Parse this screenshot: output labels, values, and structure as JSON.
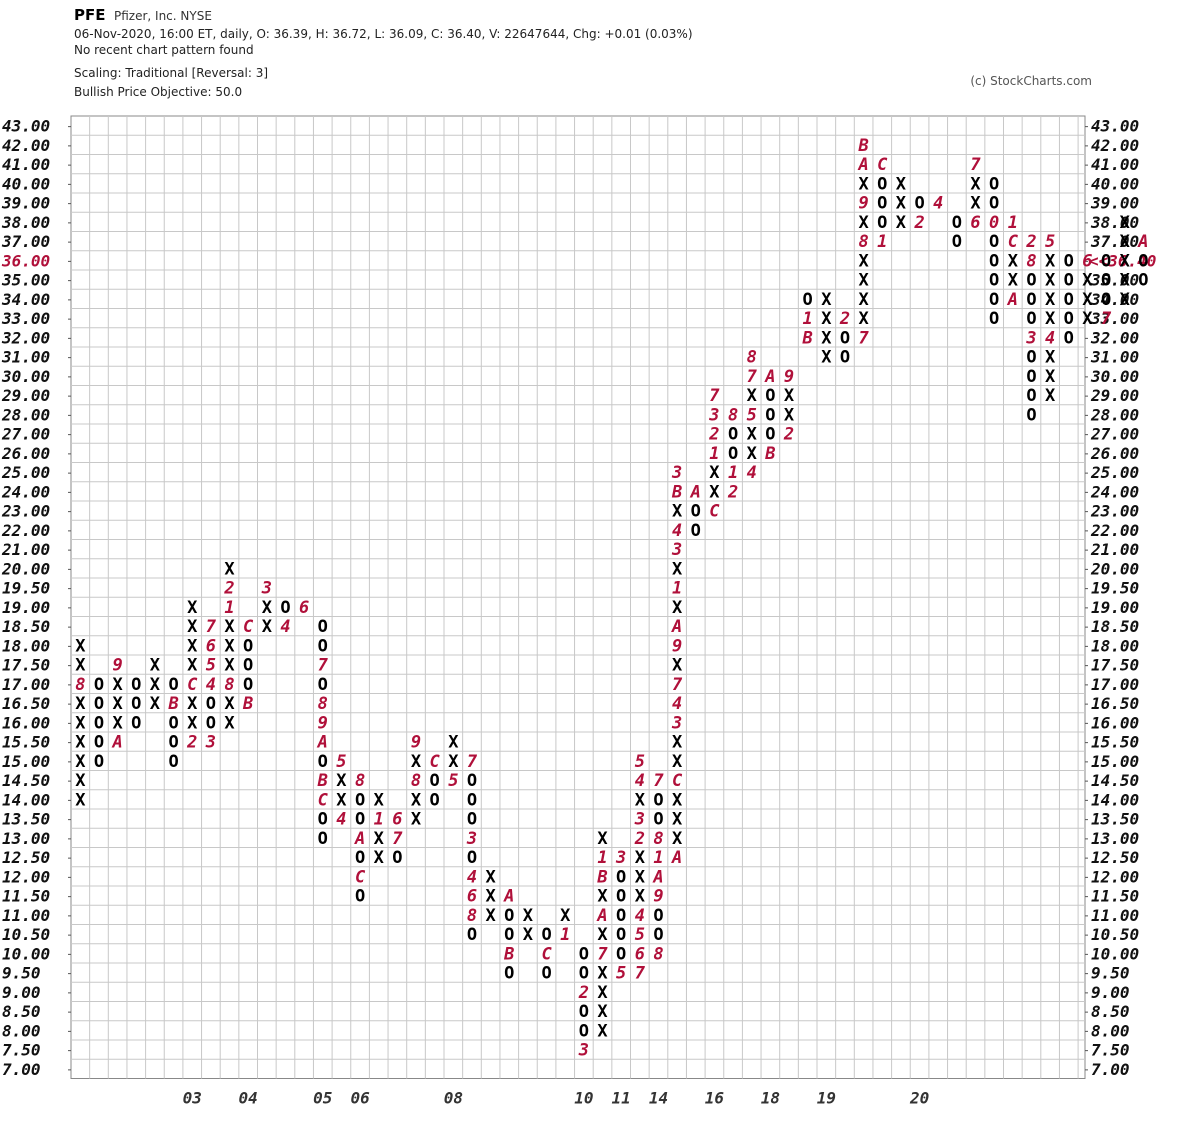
{
  "header": {
    "symbol": "PFE",
    "company": "Pfizer, Inc.  NYSE",
    "quote": "06-Nov-2020, 16:00 ET, daily, O: 36.39, H: 36.72, L: 36.09, C: 36.40, V: 22647644, Chg: +0.01 (0.03%)",
    "pattern": "No recent chart pattern found",
    "scaling": "Scaling: Traditional [Reversal: 3]",
    "objective": "Bullish Price Objective: 50.0",
    "credit": "(c) StockCharts.com"
  },
  "chart_data": {
    "type": "point-and-figure",
    "boxes": [
      "43.00",
      "42.00",
      "41.00",
      "40.00",
      "39.00",
      "38.00",
      "37.00",
      "36.00",
      "35.00",
      "34.00",
      "33.00",
      "32.00",
      "31.00",
      "30.00",
      "29.00",
      "28.00",
      "27.00",
      "26.00",
      "25.00",
      "24.00",
      "23.00",
      "22.00",
      "21.00",
      "20.00",
      "19.50",
      "19.00",
      "18.50",
      "18.00",
      "17.50",
      "17.00",
      "16.50",
      "16.00",
      "15.50",
      "15.00",
      "14.50",
      "14.00",
      "13.50",
      "13.00",
      "12.50",
      "12.00",
      "11.50",
      "11.00",
      "10.50",
      "10.00",
      "9.50",
      "9.00",
      "8.50",
      "8.00",
      "7.50",
      "7.00"
    ],
    "last_price_label": "<<36.40",
    "last_price_box": "36.00",
    "x_labels": [
      {
        "text": "03",
        "col": 6
      },
      {
        "text": "04",
        "col": 9
      },
      {
        "text": "05",
        "col": 13
      },
      {
        "text": "06",
        "col": 15
      },
      {
        "text": "08",
        "col": 20
      },
      {
        "text": "10",
        "col": 27
      },
      {
        "text": "11",
        "col": 29
      },
      {
        "text": "14",
        "col": 31
      },
      {
        "text": "16",
        "col": 34
      },
      {
        "text": "18",
        "col": 37
      },
      {
        "text": "19",
        "col": 40
      },
      {
        "text": "20",
        "col": 45
      }
    ],
    "columns": [
      {
        "t": "X",
        "low": "14.00",
        "high": "18.00",
        "marks": [
          [
            "16.00",
            "X"
          ],
          [
            "17.00",
            "8"
          ]
        ]
      },
      {
        "t": "O",
        "low": "15.00",
        "high": "17.00",
        "marks": [
          [
            "17.00",
            "O"
          ]
        ]
      },
      {
        "t": "X",
        "low": "15.50",
        "high": "17.50",
        "marks": [
          [
            "15.50",
            "A"
          ],
          [
            "17.50",
            "9"
          ]
        ]
      },
      {
        "t": "O",
        "low": "16.00",
        "high": "17.00"
      },
      {
        "t": "X",
        "low": "16.50",
        "high": "17.50"
      },
      {
        "t": "O",
        "low": "15.00",
        "high": "17.00",
        "marks": [
          [
            "16.50",
            "B"
          ]
        ]
      },
      {
        "t": "X",
        "low": "15.50",
        "high": "19.00",
        "marks": [
          [
            "15.50",
            "2"
          ],
          [
            "17.00",
            "C"
          ]
        ]
      },
      {
        "t": "O",
        "low": "15.50",
        "high": "18.50",
        "marks": [
          [
            "15.50",
            "3"
          ],
          [
            "17.00",
            "4"
          ],
          [
            "17.50",
            "5"
          ],
          [
            "18.00",
            "6"
          ],
          [
            "18.50",
            "7"
          ]
        ]
      },
      {
        "t": "X",
        "low": "16.00",
        "high": "20.00",
        "marks": [
          [
            "17.00",
            "8"
          ],
          [
            "19.00",
            "1"
          ],
          [
            "19.50",
            "2"
          ]
        ]
      },
      {
        "t": "O",
        "low": "16.50",
        "high": "18.50",
        "marks": [
          [
            "18.50",
            "C"
          ],
          [
            "16.50",
            "B"
          ]
        ]
      },
      {
        "t": "X",
        "low": "18.50",
        "high": "19.50",
        "marks": [
          [
            "19.50",
            "3"
          ]
        ]
      },
      {
        "t": "O",
        "low": "18.50",
        "high": "19.00",
        "marks": [
          [
            "18.50",
            "4"
          ]
        ]
      },
      {
        "t": "X",
        "low": "19.00",
        "high": "19.00",
        "marks": [
          [
            "19.00",
            "6"
          ]
        ]
      },
      {
        "t": "O",
        "low": "13.00",
        "high": "18.50",
        "marks": [
          [
            "17.50",
            "7"
          ],
          [
            "16.50",
            "8"
          ],
          [
            "16.00",
            "9"
          ],
          [
            "15.50",
            "A"
          ],
          [
            "14.50",
            "B"
          ],
          [
            "14.00",
            "C"
          ]
        ]
      },
      {
        "t": "X",
        "low": "13.50",
        "high": "15.00",
        "marks": [
          [
            "15.00",
            "5"
          ],
          [
            "13.50",
            "4"
          ]
        ]
      },
      {
        "t": "O",
        "low": "11.50",
        "high": "14.50",
        "marks": [
          [
            "14.50",
            "8"
          ],
          [
            "13.00",
            "A"
          ],
          [
            "12.00",
            "C"
          ]
        ]
      },
      {
        "t": "X",
        "low": "12.50",
        "high": "14.00",
        "marks": [
          [
            "13.50",
            "1"
          ]
        ]
      },
      {
        "t": "O",
        "low": "12.50",
        "high": "13.50",
        "marks": [
          [
            "13.50",
            "6"
          ],
          [
            "13.00",
            "7"
          ]
        ]
      },
      {
        "t": "X",
        "low": "13.50",
        "high": "15.50",
        "marks": [
          [
            "15.50",
            "9"
          ],
          [
            "14.50",
            "8"
          ]
        ]
      },
      {
        "t": "O",
        "low": "14.00",
        "high": "15.00",
        "marks": [
          [
            "15.00",
            "C"
          ]
        ]
      },
      {
        "t": "X",
        "low": "14.50",
        "high": "15.50",
        "marks": [
          [
            "14.50",
            "5"
          ]
        ]
      },
      {
        "t": "O",
        "low": "10.50",
        "high": "15.00",
        "marks": [
          [
            "15.00",
            "7"
          ],
          [
            "13.00",
            "3"
          ],
          [
            "12.00",
            "4"
          ],
          [
            "11.50",
            "6"
          ],
          [
            "11.00",
            "8"
          ]
        ]
      },
      {
        "t": "X",
        "low": "11.00",
        "high": "12.00"
      },
      {
        "t": "O",
        "low": "9.50",
        "high": "11.50",
        "marks": [
          [
            "11.50",
            "A"
          ],
          [
            "10.00",
            "B"
          ]
        ]
      },
      {
        "t": "X",
        "low": "10.50",
        "high": "11.00"
      },
      {
        "t": "O",
        "low": "9.50",
        "high": "10.50",
        "marks": [
          [
            "10.00",
            "C"
          ]
        ]
      },
      {
        "t": "X",
        "low": "10.50",
        "high": "11.00",
        "marks": [
          [
            "10.50",
            "1"
          ]
        ]
      },
      {
        "t": "O",
        "low": "7.50",
        "high": "10.00",
        "marks": [
          [
            "7.50",
            "3"
          ],
          [
            "9.00",
            "2"
          ]
        ]
      },
      {
        "t": "X",
        "low": "8.00",
        "high": "13.00",
        "marks": [
          [
            "10.00",
            "7"
          ],
          [
            "11.00",
            "A"
          ],
          [
            "12.00",
            "B"
          ],
          [
            "12.50",
            "1"
          ]
        ]
      },
      {
        "t": "O",
        "low": "9.50",
        "high": "12.50",
        "marks": [
          [
            "12.50",
            "3"
          ],
          [
            "9.50",
            "5"
          ]
        ]
      },
      {
        "t": "X",
        "low": "9.50",
        "high": "15.00",
        "marks": [
          [
            "9.50",
            "7"
          ],
          [
            "10.00",
            "6"
          ],
          [
            "10.50",
            "5"
          ],
          [
            "11.00",
            "4"
          ],
          [
            "13.00",
            "2"
          ],
          [
            "13.50",
            "3"
          ],
          [
            "14.50",
            "4"
          ],
          [
            "15.00",
            "5"
          ]
        ]
      },
      {
        "t": "O",
        "low": "10.00",
        "high": "14.50",
        "marks": [
          [
            "14.50",
            "7"
          ],
          [
            "13.00",
            "8"
          ],
          [
            "12.50",
            "1"
          ],
          [
            "12.00",
            "A"
          ],
          [
            "11.50",
            "9"
          ],
          [
            "10.00",
            "8"
          ]
        ]
      },
      {
        "t": "X",
        "low": "12.50",
        "high": "25.00",
        "marks": [
          [
            "12.50",
            "A"
          ],
          [
            "14.50",
            "C"
          ],
          [
            "16.00",
            "3"
          ],
          [
            "16.50",
            "4"
          ],
          [
            "17.00",
            "7"
          ],
          [
            "18.00",
            "9"
          ],
          [
            "18.50",
            "A"
          ],
          [
            "19.50",
            "1"
          ],
          [
            "21.00",
            "3"
          ],
          [
            "22.00",
            "4"
          ],
          [
            "24.00",
            "B"
          ],
          [
            "25.00",
            "3"
          ]
        ]
      },
      {
        "t": "O",
        "low": "22.00",
        "high": "24.00",
        "marks": [
          [
            "24.00",
            "A"
          ]
        ]
      },
      {
        "t": "X",
        "low": "23.00",
        "high": "29.00",
        "marks": [
          [
            "23.00",
            "C"
          ],
          [
            "26.00",
            "1"
          ],
          [
            "27.00",
            "2"
          ],
          [
            "28.00",
            "3"
          ],
          [
            "29.00",
            "7"
          ]
        ]
      },
      {
        "t": "O",
        "low": "24.00",
        "high": "28.00",
        "marks": [
          [
            "24.00",
            "2"
          ],
          [
            "25.00",
            "1"
          ],
          [
            "28.00",
            "8"
          ]
        ]
      },
      {
        "t": "X",
        "low": "25.00",
        "high": "31.00",
        "marks": [
          [
            "25.00",
            "4"
          ],
          [
            "28.00",
            "5"
          ],
          [
            "30.00",
            "7"
          ],
          [
            "31.00",
            "8"
          ]
        ]
      },
      {
        "t": "O",
        "low": "26.00",
        "high": "30.00",
        "marks": [
          [
            "26.00",
            "B"
          ],
          [
            "30.00",
            "A"
          ]
        ]
      },
      {
        "t": "X",
        "low": "27.00",
        "high": "30.00",
        "marks": [
          [
            "27.00",
            "2"
          ],
          [
            "30.00",
            "9"
          ]
        ]
      },
      {
        "t": "O",
        "low": "32.00",
        "high": "34.00",
        "marks": [
          [
            "32.00",
            "B"
          ],
          [
            "33.00",
            "1"
          ]
        ]
      },
      {
        "t": "X",
        "low": "31.00",
        "high": "34.00"
      },
      {
        "t": "O",
        "low": "31.00",
        "high": "33.00",
        "marks": [
          [
            "33.00",
            "2"
          ]
        ]
      },
      {
        "t": "X",
        "low": "32.00",
        "high": "42.00",
        "marks": [
          [
            "32.00",
            "7"
          ],
          [
            "37.00",
            "8"
          ],
          [
            "39.00",
            "9"
          ],
          [
            "41.00",
            "A"
          ],
          [
            "42.00",
            "B"
          ]
        ]
      },
      {
        "t": "O",
        "low": "37.00",
        "high": "41.00",
        "marks": [
          [
            "41.00",
            "C"
          ],
          [
            "37.00",
            "1"
          ]
        ]
      },
      {
        "t": "X",
        "low": "38.00",
        "high": "40.00"
      },
      {
        "t": "O",
        "low": "38.00",
        "high": "39.00",
        "marks": [
          [
            "38.00",
            "2"
          ]
        ]
      },
      {
        "t": "X",
        "low": "39.00",
        "high": "39.00",
        "marks": [
          [
            "39.00",
            "4"
          ]
        ]
      },
      {
        "t": "O",
        "low": "37.00",
        "high": "38.00"
      },
      {
        "t": "X",
        "low": "38.00",
        "high": "41.00",
        "marks": [
          [
            "38.00",
            "6"
          ],
          [
            "41.00",
            "7"
          ]
        ]
      },
      {
        "t": "O",
        "low": "33.00",
        "high": "40.00",
        "marks": [
          [
            "38.00",
            "0"
          ],
          [
            "37.00",
            "O"
          ]
        ]
      },
      {
        "t": "X",
        "low": "34.00",
        "high": "38.00",
        "marks": [
          [
            "34.00",
            "A"
          ],
          [
            "37.00",
            "C"
          ],
          [
            "38.00",
            "1"
          ]
        ]
      },
      {
        "t": "O",
        "low": "28.00",
        "high": "37.00",
        "marks": [
          [
            "36.00",
            "8"
          ],
          [
            "37.00",
            "2"
          ],
          [
            "32.00",
            "3"
          ]
        ]
      },
      {
        "t": "X",
        "low": "29.00",
        "high": "37.00",
        "marks": [
          [
            "32.00",
            "4"
          ],
          [
            "37.00",
            "5"
          ]
        ]
      },
      {
        "t": "O",
        "low": "32.00",
        "high": "36.00"
      },
      {
        "t": "X",
        "low": "33.00",
        "high": "36.00",
        "marks": [
          [
            "36.00",
            "6"
          ]
        ]
      },
      {
        "t": "O",
        "low": "33.00",
        "high": "36.00",
        "marks": [
          [
            "33.00",
            "7"
          ]
        ]
      },
      {
        "t": "X",
        "low": "34.00",
        "high": "38.00"
      },
      {
        "t": "O",
        "low": "35.00",
        "high": "37.00",
        "marks": [
          [
            "37.00",
            "A"
          ]
        ]
      }
    ]
  }
}
